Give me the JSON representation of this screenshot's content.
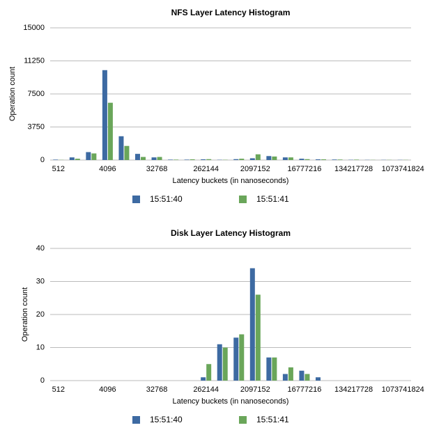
{
  "chart_data": [
    {
      "type": "bar",
      "title": "NFS Layer Latency Histogram",
      "x_label": "Latency buckets (in nanoseconds)",
      "y_label": "Operation count",
      "categories": [
        "512",
        null,
        null,
        "4096",
        null,
        null,
        "32768",
        null,
        null,
        "262144",
        null,
        null,
        "2097152",
        null,
        null,
        "16777216",
        null,
        null,
        "134217728",
        null,
        null,
        "1073741824"
      ],
      "series": [
        {
          "name": "15:51:40",
          "color": "#3d6aa2",
          "values": [
            50,
            300,
            900,
            10200,
            2700,
            700,
            300,
            50,
            50,
            80,
            30,
            100,
            200,
            450,
            300,
            150,
            80,
            60,
            30,
            20,
            20,
            20
          ]
        },
        {
          "name": "15:51:41",
          "color": "#6aa65a",
          "values": [
            20,
            150,
            750,
            6500,
            1600,
            350,
            350,
            50,
            80,
            100,
            30,
            150,
            650,
            400,
            300,
            100,
            80,
            60,
            50,
            20,
            20,
            20
          ]
        }
      ],
      "ylim": [
        0,
        15000
      ],
      "yticks": [
        0,
        3750,
        7500,
        11250,
        15000
      ],
      "grid": true
    },
    {
      "type": "bar",
      "title": "Disk Layer Latency Histogram",
      "x_label": "Latency buckets (in nanoseconds)",
      "y_label": "Operation count",
      "categories": [
        "512",
        null,
        null,
        "4096",
        null,
        null,
        "32768",
        null,
        null,
        "262144",
        null,
        null,
        "2097152",
        null,
        null,
        "16777216",
        null,
        null,
        "134217728",
        null,
        null,
        "1073741824"
      ],
      "series": [
        {
          "name": "15:51:40",
          "color": "#3d6aa2",
          "values": [
            0,
            0,
            0,
            0,
            0,
            0,
            0,
            0,
            0,
            1,
            11,
            13,
            34,
            7,
            2,
            3,
            1,
            0,
            0,
            0,
            0,
            0
          ]
        },
        {
          "name": "15:51:41",
          "color": "#6aa65a",
          "values": [
            0,
            0,
            0,
            0,
            0,
            0,
            0,
            0,
            0,
            5,
            10,
            14,
            26,
            7,
            4,
            2,
            0,
            0,
            0,
            0,
            0,
            0
          ]
        }
      ],
      "ylim": [
        0,
        40
      ],
      "yticks": [
        0,
        10,
        20,
        30,
        40
      ],
      "grid": true
    }
  ]
}
